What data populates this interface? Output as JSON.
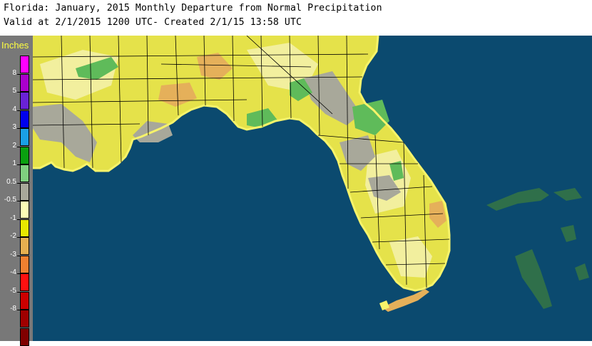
{
  "header": {
    "title": "Florida: January, 2015 Monthly Departure from Normal Precipitation",
    "subtitle": "Valid at 2/1/2015 1200 UTC- Created 2/1/15 13:58 UTC"
  },
  "legend": {
    "title": "Inches",
    "labels": [
      "8",
      "5",
      "4",
      "3",
      "2",
      "1",
      "0.5",
      "-0.5",
      "-1",
      "-2",
      "-3",
      "-4",
      "-5",
      "-8"
    ],
    "colors": [
      "#ff00ff",
      "#aa00cc",
      "#6a22d6",
      "#0000ee",
      "#1aa0e6",
      "#0aa010",
      "#7fcf7f",
      "#a8a89a",
      "#fcfcb6",
      "#e8e800",
      "#e6b050",
      "#f08030",
      "#ff1010",
      "#cc0000",
      "#a00000",
      "#800000"
    ]
  },
  "map_colors": {
    "ocean": "#0b4a6f",
    "land_base": "#e5e24a",
    "light_yellow": "#f2ef9e",
    "gray": "#a8a89a",
    "green": "#5fbb5a",
    "orange": "#e5b05a",
    "coast": "#f6f36a",
    "county_lines": "#000000",
    "islands": "#2f6f4a"
  }
}
